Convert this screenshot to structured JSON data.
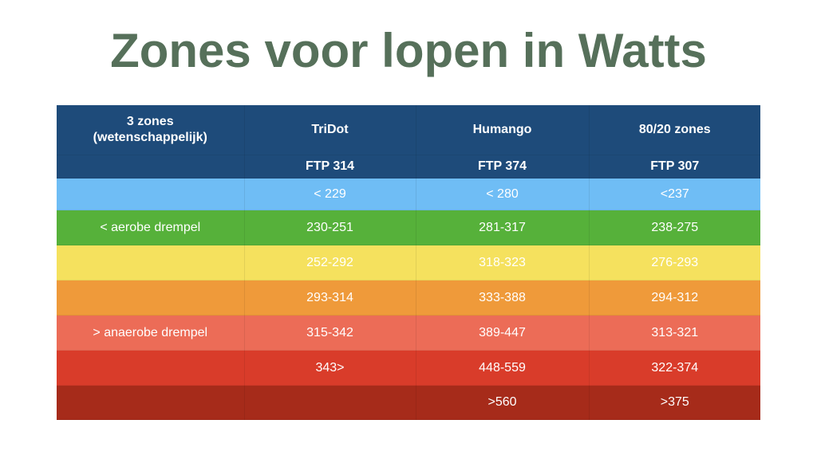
{
  "title": "Zones voor lopen in Watts",
  "colors": {
    "title": "#56705a",
    "header": "#1e4b7a",
    "zone_1": "#6fbdf5",
    "zone_2": "#56b13a",
    "zone_3": "#f5e15e",
    "zone_4": "#ef9a3a",
    "zone_5": "#ec6c57",
    "zone_6": "#d93c2a",
    "zone_7": "#a62b1a"
  },
  "table": {
    "headers": {
      "col0_line1": "3 zones",
      "col0_line2": "(wetenschappelijk)",
      "col1": "TriDot",
      "col2": "Humango",
      "col3": "80/20 zones"
    },
    "ftp": [
      "",
      "FTP 314",
      "FTP 374",
      "FTP 307"
    ],
    "rows": [
      [
        "",
        "< 229",
        "< 280",
        "<237"
      ],
      [
        "< aerobe drempel",
        "230-251",
        "281-317",
        "238-275"
      ],
      [
        "",
        "252-292",
        "318-323",
        "276-293"
      ],
      [
        "",
        "293-314",
        "333-388",
        "294-312"
      ],
      [
        "> anaerobe drempel",
        "315-342",
        "389-447",
        "313-321"
      ],
      [
        "",
        "343>",
        "448-559",
        "322-374"
      ],
      [
        "",
        "",
        ">560",
        ">375"
      ]
    ]
  }
}
